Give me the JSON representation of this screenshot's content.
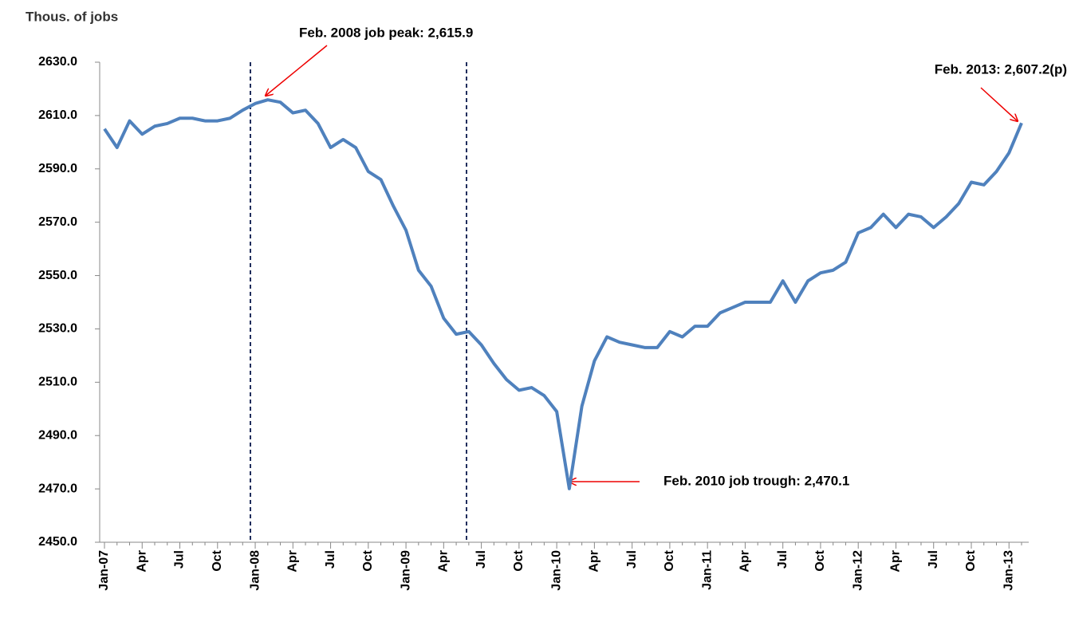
{
  "chart_data": {
    "type": "line",
    "y_axis_label": "Thous. of jobs",
    "categories": [
      "Jan-07",
      null,
      null,
      "Apr",
      null,
      null,
      "Jul",
      null,
      null,
      "Oct",
      null,
      null,
      "Jan-08",
      null,
      null,
      "Apr",
      null,
      null,
      "Jul",
      null,
      null,
      "Oct",
      null,
      null,
      "Jan-09",
      null,
      null,
      "Apr",
      null,
      null,
      "Jul",
      null,
      null,
      "Oct",
      null,
      null,
      "Jan-10",
      null,
      null,
      "Apr",
      null,
      null,
      "Jul",
      null,
      null,
      "Oct",
      null,
      null,
      "Jan-11",
      null,
      null,
      "Apr",
      null,
      null,
      "Jul",
      null,
      null,
      "Oct",
      null,
      null,
      "Jan-12",
      null,
      null,
      "Apr",
      null,
      null,
      "Jul",
      null,
      null,
      "Oct",
      null,
      null,
      "Jan-13",
      null
    ],
    "series": [
      {
        "name": "Jobs",
        "color": "#4f81bd",
        "values": [
          2605,
          2598,
          2608,
          2603,
          2606,
          2607,
          2609,
          2609,
          2608,
          2608,
          2609,
          2612,
          2614.5,
          2615.9,
          2615,
          2611,
          2612,
          2607,
          2598,
          2601,
          2598,
          2589,
          2586,
          2576,
          2567,
          2552,
          2546,
          2534,
          2528,
          2529,
          2524,
          2517,
          2511,
          2507,
          2508,
          2505,
          2499,
          2470.1,
          2501,
          2518,
          2527,
          2525,
          2524,
          2523,
          2523,
          2529,
          2527,
          2531,
          2531,
          2536,
          2538,
          2540,
          2540,
          2540,
          2548,
          2540,
          2548,
          2551,
          2552,
          2555,
          2566,
          2568,
          2573,
          2568,
          2573,
          2572,
          2568,
          2572,
          2577,
          2585,
          2584,
          2589,
          2596,
          2607.2
        ]
      }
    ],
    "ylim": [
      2450,
      2630
    ],
    "yticks": [
      {
        "value": 2450,
        "label": "2450.0"
      },
      {
        "value": 2470,
        "label": "2470.0"
      },
      {
        "value": 2490,
        "label": "2490.0"
      },
      {
        "value": 2510,
        "label": "2510.0"
      },
      {
        "value": 2530,
        "label": "2530.0"
      },
      {
        "value": 2550,
        "label": "2550.0"
      },
      {
        "value": 2570,
        "label": "2570.0"
      },
      {
        "value": 2590,
        "label": "2590.0"
      },
      {
        "value": 2610,
        "label": "2610.0"
      },
      {
        "value": 2630,
        "label": "2630.0"
      }
    ],
    "annotations": [
      "Feb. 2008 job peak:  2,615.9",
      "Feb. 2013:  2,607.2(p)",
      "Feb. 2010 job trough:  2,470.1"
    ]
  }
}
